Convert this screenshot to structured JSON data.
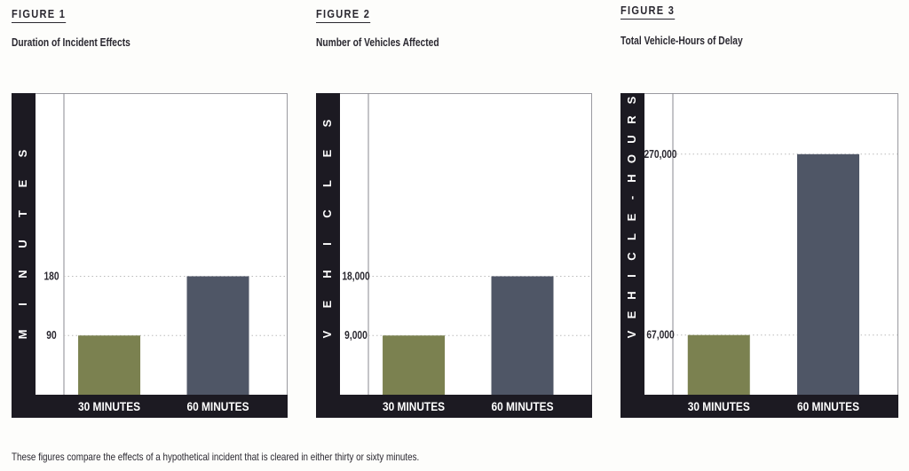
{
  "caption": "These figures compare the effects of a hypothetical incident that is cleared in either thirty or sixty minutes.",
  "colors": {
    "bar_30": "#7b8150",
    "bar_60": "#4f5666",
    "band": "#1c1a22",
    "grid": "#bbbbbb"
  },
  "chart_data": [
    {
      "type": "bar",
      "figure_label": "FIGURE 1",
      "title": "Duration of Incident Effects",
      "ylabel": "MINUTES",
      "categories": [
        "30 MINUTES",
        "60 MINUTES"
      ],
      "values": [
        90,
        180
      ],
      "ytick_labels": [
        "90",
        "180"
      ],
      "yticks": [
        90,
        180
      ],
      "ylim": [
        0,
        457
      ],
      "grid": "dotted horizontal at ticks"
    },
    {
      "type": "bar",
      "figure_label": "FIGURE 2",
      "title": "Number of Vehicles Affected",
      "ylabel": "VEHICLES",
      "categories": [
        "30 MINUTES",
        "60 MINUTES"
      ],
      "values": [
        9000,
        18000
      ],
      "ytick_labels": [
        "9,000",
        "18,000"
      ],
      "yticks": [
        9000,
        18000
      ],
      "ylim": [
        0,
        45700
      ],
      "grid": "dotted horizontal at ticks"
    },
    {
      "type": "bar",
      "figure_label": "FIGURE 3",
      "title": "Total Vehicle-Hours of Delay",
      "ylabel": "VEHICLE-HOURS",
      "categories": [
        "30 MINUTES",
        "60 MINUTES"
      ],
      "values": [
        67000,
        270000
      ],
      "ytick_labels": [
        "67,000",
        "270,000"
      ],
      "yticks": [
        67000,
        270000
      ],
      "ylim": [
        0,
        337500
      ],
      "grid": "dotted horizontal at ticks"
    }
  ]
}
